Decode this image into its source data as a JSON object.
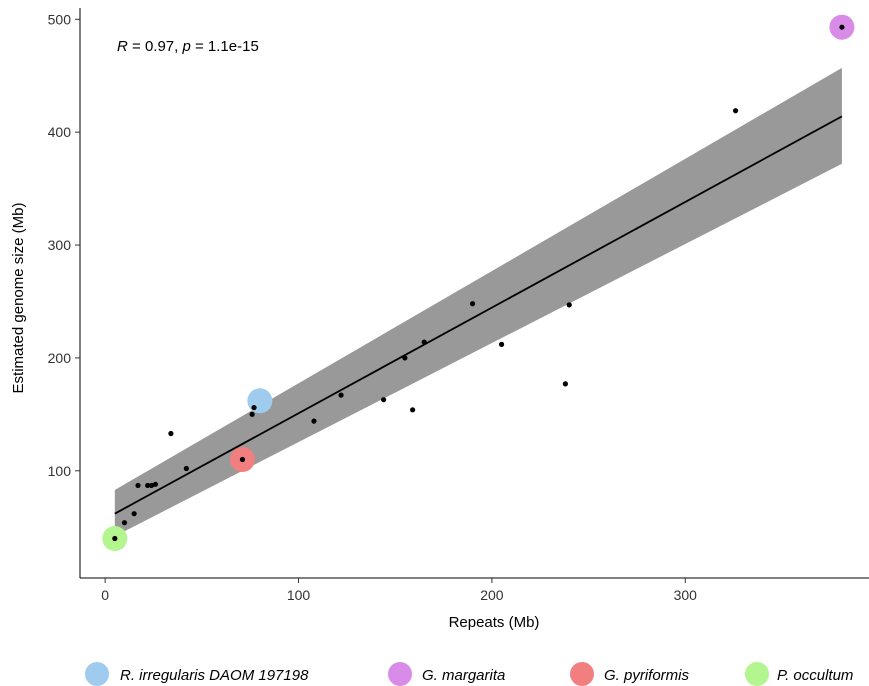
{
  "chart_data": {
    "type": "scatter",
    "xlabel": "Repeats (Mb)",
    "ylabel": "Estimated genome size (Mb)",
    "xlim": [
      -13,
      395
    ],
    "ylim": [
      5,
      510
    ],
    "x_ticks": [
      0,
      100,
      200,
      300
    ],
    "y_ticks": [
      100,
      200,
      300,
      400,
      500
    ],
    "grid": false,
    "annotation": {
      "r_symbol": "R",
      "r_text": " = 0.97, ",
      "p_symbol": "p",
      "p_text": " = 1.1e-15"
    },
    "points": [
      {
        "x": 5,
        "y": 40
      },
      {
        "x": 10,
        "y": 54
      },
      {
        "x": 15,
        "y": 62
      },
      {
        "x": 17,
        "y": 87
      },
      {
        "x": 22,
        "y": 87
      },
      {
        "x": 24,
        "y": 87
      },
      {
        "x": 26,
        "y": 88
      },
      {
        "x": 34,
        "y": 133
      },
      {
        "x": 42,
        "y": 102
      },
      {
        "x": 71,
        "y": 110
      },
      {
        "x": 76,
        "y": 150
      },
      {
        "x": 77,
        "y": 156
      },
      {
        "x": 108,
        "y": 144
      },
      {
        "x": 122,
        "y": 167
      },
      {
        "x": 144,
        "y": 163
      },
      {
        "x": 155,
        "y": 200
      },
      {
        "x": 159,
        "y": 154
      },
      {
        "x": 165,
        "y": 214
      },
      {
        "x": 190,
        "y": 248
      },
      {
        "x": 205,
        "y": 212
      },
      {
        "x": 238,
        "y": 177
      },
      {
        "x": 240,
        "y": 247
      },
      {
        "x": 326,
        "y": 419
      },
      {
        "x": 381,
        "y": 493
      }
    ],
    "regression": {
      "x": [
        5,
        381
      ],
      "y": [
        62,
        414
      ],
      "ci_lower": [
        42,
        372
      ],
      "ci_upper": [
        83,
        457
      ],
      "line_color": "#000000",
      "band_color": "#999999"
    },
    "highlights": [
      {
        "name": "R. irregularis DAOM 197198",
        "x": 80,
        "y": 162,
        "color": "#9fcbee"
      },
      {
        "name": "G. margarita",
        "x": 381,
        "y": 493,
        "color": "#d98be8"
      },
      {
        "name": "G. pyriformis",
        "x": 71,
        "y": 110,
        "color": "#f27f7f"
      },
      {
        "name": "P. occultum",
        "x": 5,
        "y": 40,
        "color": "#b3f58e"
      }
    ],
    "legend_position": "bottom"
  }
}
